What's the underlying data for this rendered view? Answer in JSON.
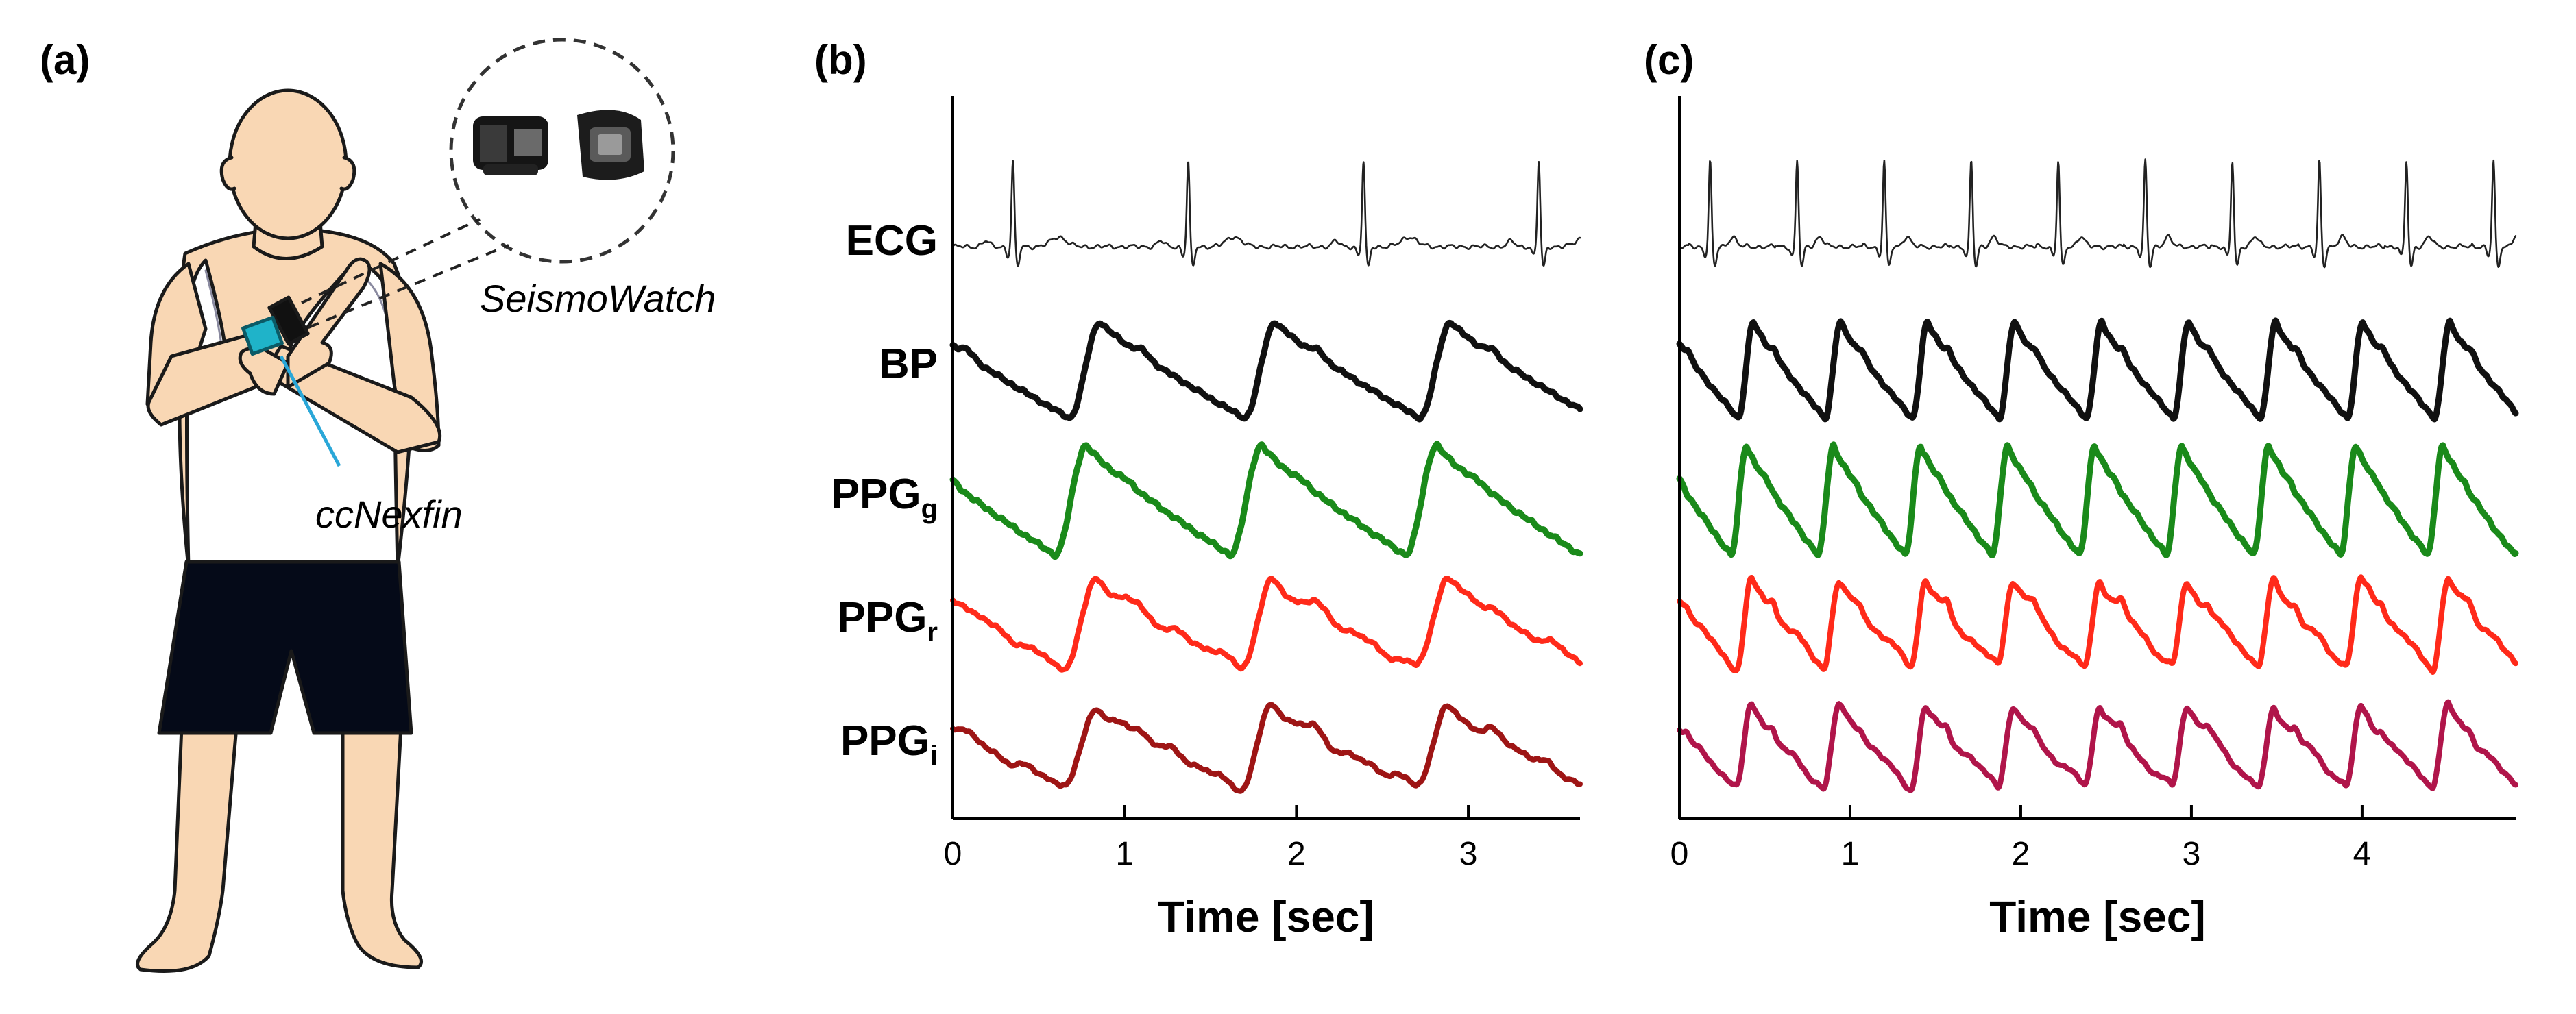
{
  "panels": {
    "a": {
      "label": "(a)"
    },
    "b": {
      "label": "(b)"
    },
    "c": {
      "label": "(c)"
    }
  },
  "illustration": {
    "device_callout": "SeismoWatch",
    "reference_callout": "ccNexfin",
    "colors": {
      "skin": "#f9d7b4",
      "outline": "#1a1a1a",
      "shorts": "#050a18",
      "sensor": "#1fb3c9",
      "callout_line": "#2aa7d8"
    }
  },
  "chart_data": [
    {
      "type": "line",
      "panel": "(b)",
      "xlabel": "Time [sec]",
      "xlim": [
        0,
        3.65
      ],
      "xticks": [
        0,
        1,
        2,
        3
      ],
      "signal_labels": [
        {
          "main": "ECG",
          "sub": ""
        },
        {
          "main": "BP",
          "sub": ""
        },
        {
          "main": "PPG",
          "sub": "g"
        },
        {
          "main": "PPG",
          "sub": "r"
        },
        {
          "main": "PPG",
          "sub": "i"
        }
      ],
      "heart_period_sec": 1.02,
      "first_beat_sec": 0.35,
      "series": [
        {
          "signal": "ECG",
          "color": "#222222"
        },
        {
          "signal": "BP",
          "color": "#111111"
        },
        {
          "signal": "PPGg",
          "color": "#1a8a1a"
        },
        {
          "signal": "PPGr",
          "color": "#ff2a1a"
        },
        {
          "signal": "PPGi",
          "color": "#9e1515"
        }
      ]
    },
    {
      "type": "line",
      "panel": "(c)",
      "xlabel": "Time [sec]",
      "xlim": [
        0,
        4.9
      ],
      "xticks": [
        0,
        1,
        2,
        3,
        4
      ],
      "signal_labels": [],
      "heart_period_sec": 0.51,
      "first_beat_sec": 0.18,
      "series": [
        {
          "signal": "ECG",
          "color": "#222222"
        },
        {
          "signal": "BP",
          "color": "#111111"
        },
        {
          "signal": "PPGg",
          "color": "#1a8a1a"
        },
        {
          "signal": "PPGr",
          "color": "#ff2a1a"
        },
        {
          "signal": "PPGi",
          "color": "#b0154a"
        }
      ]
    }
  ]
}
